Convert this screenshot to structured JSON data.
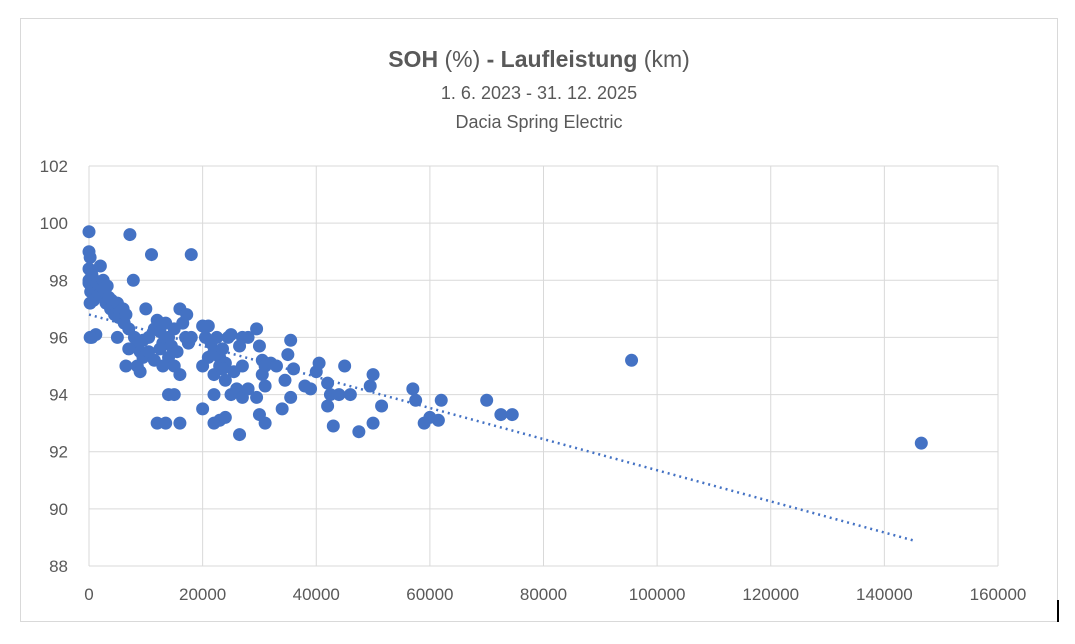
{
  "chart_data": {
    "type": "scatter",
    "title_bold_1": "SOH",
    "title_normal_1": " (%) ",
    "title_bold_2": "- Laufleistung",
    "title_normal_2": " (km)",
    "subtitle_1": "1. 6. 2023 - 31. 12. 2025",
    "subtitle_2": "Dacia Spring Electric",
    "xlim": [
      0,
      160000
    ],
    "ylim": [
      88,
      102
    ],
    "x_ticks": [
      0,
      20000,
      40000,
      60000,
      80000,
      100000,
      120000,
      140000,
      160000
    ],
    "x_tick_labels": [
      "0",
      "20000",
      "40000",
      "60000",
      "80000",
      "100000",
      "120000",
      "140000",
      "160000"
    ],
    "y_ticks": [
      88,
      90,
      92,
      94,
      96,
      98,
      100,
      102
    ],
    "y_tick_labels": [
      "88",
      "90",
      "92",
      "94",
      "96",
      "98",
      "100",
      "102"
    ],
    "grid": true,
    "marker_color": "#4472c4",
    "trendline": {
      "type": "linear",
      "x": [
        0,
        145000
      ],
      "y": [
        96.8,
        88.9
      ],
      "color": "#4472c4",
      "style": "dotted"
    },
    "points": [
      [
        0,
        99.7
      ],
      [
        0,
        99.0
      ],
      [
        200,
        98.8
      ],
      [
        0,
        98.4
      ],
      [
        0,
        98.0
      ],
      [
        0,
        97.9
      ],
      [
        300,
        97.6
      ],
      [
        500,
        98.2
      ],
      [
        800,
        97.3
      ],
      [
        200,
        97.2
      ],
      [
        1000,
        98.0
      ],
      [
        1200,
        97.7
      ],
      [
        1500,
        97.9
      ],
      [
        1800,
        97.5
      ],
      [
        2000,
        98.5
      ],
      [
        2200,
        97.8
      ],
      [
        2500,
        98.0
      ],
      [
        2800,
        97.6
      ],
      [
        3000,
        97.2
      ],
      [
        3200,
        97.8
      ],
      [
        3500,
        97.4
      ],
      [
        3800,
        97.0
      ],
      [
        4000,
        97.3
      ],
      [
        4200,
        97.1
      ],
      [
        4500,
        96.8
      ],
      [
        5000,
        97.2
      ],
      [
        5200,
        96.7
      ],
      [
        5500,
        96.9
      ],
      [
        6000,
        97.0
      ],
      [
        6200,
        96.5
      ],
      [
        6500,
        96.8
      ],
      [
        7000,
        96.3
      ],
      [
        7200,
        99.6
      ],
      [
        7800,
        98.0
      ],
      [
        8000,
        96.0
      ],
      [
        8500,
        95.8
      ],
      [
        9000,
        95.5
      ],
      [
        9500,
        95.9
      ],
      [
        10000,
        97.0
      ],
      [
        10500,
        96.0
      ],
      [
        11000,
        98.9
      ],
      [
        11500,
        96.3
      ],
      [
        12000,
        96.6
      ],
      [
        12500,
        96.2
      ],
      [
        13000,
        95.8
      ],
      [
        13500,
        96.5
      ],
      [
        14000,
        96.0
      ],
      [
        14500,
        95.7
      ],
      [
        15000,
        96.3
      ],
      [
        15500,
        95.5
      ],
      [
        16000,
        97.0
      ],
      [
        16500,
        96.5
      ],
      [
        17000,
        96.0
      ],
      [
        17200,
        96.8
      ],
      [
        17500,
        95.8
      ],
      [
        18000,
        98.9
      ],
      [
        18000,
        96.0
      ],
      [
        6500,
        95.0
      ],
      [
        7000,
        95.6
      ],
      [
        8500,
        95.0
      ],
      [
        9000,
        94.8
      ],
      [
        9500,
        95.3
      ],
      [
        10500,
        95.5
      ],
      [
        11500,
        95.2
      ],
      [
        12500,
        95.6
      ],
      [
        13000,
        95.0
      ],
      [
        14000,
        95.3
      ],
      [
        15000,
        95.0
      ],
      [
        16000,
        94.7
      ],
      [
        12000,
        93.0
      ],
      [
        13500,
        93.0
      ],
      [
        14000,
        94.0
      ],
      [
        15000,
        94.0
      ],
      [
        16000,
        93.0
      ],
      [
        5000,
        96.0
      ],
      [
        500,
        96.0
      ],
      [
        1200,
        96.1
      ],
      [
        200,
        96.0
      ],
      [
        20000,
        96.4
      ],
      [
        20500,
        96.0
      ],
      [
        21000,
        96.4
      ],
      [
        21500,
        95.8
      ],
      [
        22000,
        95.5
      ],
      [
        22500,
        96.0
      ],
      [
        23000,
        95.3
      ],
      [
        23500,
        95.6
      ],
      [
        24000,
        95.1
      ],
      [
        24500,
        96.0
      ],
      [
        25000,
        96.1
      ],
      [
        25500,
        94.8
      ],
      [
        20000,
        95.0
      ],
      [
        21000,
        95.3
      ],
      [
        22000,
        94.7
      ],
      [
        23000,
        95.0
      ],
      [
        24000,
        94.5
      ],
      [
        25000,
        94.0
      ],
      [
        26000,
        94.2
      ],
      [
        27000,
        95.0
      ],
      [
        20000,
        93.5
      ],
      [
        22000,
        93.0
      ],
      [
        23000,
        93.1
      ],
      [
        24000,
        93.2
      ],
      [
        26500,
        92.6
      ],
      [
        22000,
        94.0
      ],
      [
        23500,
        94.9
      ],
      [
        27000,
        96.0
      ],
      [
        26500,
        95.7
      ],
      [
        28000,
        96.0
      ],
      [
        29500,
        96.3
      ],
      [
        30000,
        95.7
      ],
      [
        30500,
        95.2
      ],
      [
        31000,
        95.0
      ],
      [
        27000,
        93.9
      ],
      [
        28000,
        94.2
      ],
      [
        29500,
        93.9
      ],
      [
        30000,
        93.3
      ],
      [
        30500,
        94.7
      ],
      [
        31000,
        94.3
      ],
      [
        31000,
        93.0
      ],
      [
        32000,
        95.1
      ],
      [
        33000,
        95.0
      ],
      [
        34000,
        93.5
      ],
      [
        34500,
        94.5
      ],
      [
        35000,
        95.4
      ],
      [
        35500,
        95.9
      ],
      [
        36000,
        94.9
      ],
      [
        35500,
        93.9
      ],
      [
        38000,
        94.3
      ],
      [
        39000,
        94.2
      ],
      [
        40000,
        94.8
      ],
      [
        40500,
        95.1
      ],
      [
        42000,
        94.4
      ],
      [
        42500,
        94.0
      ],
      [
        42000,
        93.6
      ],
      [
        43000,
        92.9
      ],
      [
        44000,
        94.0
      ],
      [
        45000,
        95.0
      ],
      [
        46000,
        94.0
      ],
      [
        47500,
        92.7
      ],
      [
        50000,
        93.0
      ],
      [
        49500,
        94.3
      ],
      [
        50000,
        94.7
      ],
      [
        51500,
        93.6
      ],
      [
        57000,
        94.2
      ],
      [
        57500,
        93.8
      ],
      [
        59000,
        93.0
      ],
      [
        60000,
        93.2
      ],
      [
        61500,
        93.1
      ],
      [
        62000,
        93.8
      ],
      [
        70000,
        93.8
      ],
      [
        72500,
        93.3
      ],
      [
        74500,
        93.3
      ],
      [
        95500,
        95.2
      ],
      [
        146500,
        92.3
      ]
    ]
  }
}
